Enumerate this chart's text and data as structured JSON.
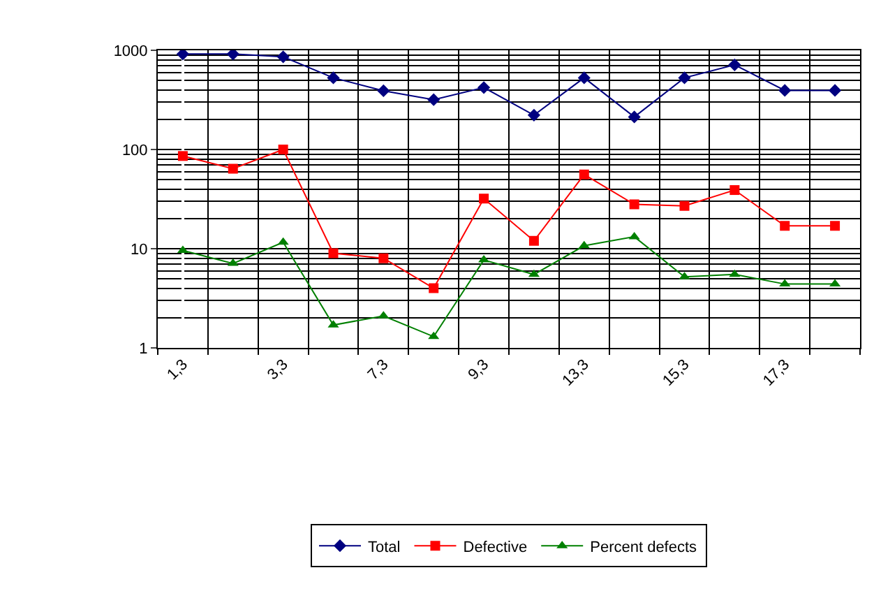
{
  "chart_data": {
    "type": "line",
    "categories": [
      "1,3",
      null,
      "3,3",
      null,
      "7,3",
      null,
      "9,3",
      null,
      "13,3",
      null,
      "15,3",
      null,
      "17,3",
      null
    ],
    "series": [
      {
        "name": "Total",
        "color": "#000080",
        "marker": "diamond",
        "values": [
          917,
          917,
          860,
          528,
          391,
          318,
          421,
          222,
          528,
          213,
          528,
          714,
          394,
          394
        ]
      },
      {
        "name": "Defective",
        "color": "#ff0000",
        "marker": "square",
        "values": [
          86,
          64,
          100,
          9,
          8,
          4,
          32,
          12,
          56,
          28,
          27,
          39,
          17,
          17
        ]
      },
      {
        "name": "Percent defects",
        "color": "#008000",
        "marker": "triangle",
        "values": [
          9.6,
          7.1,
          11.6,
          1.7,
          2.1,
          1.3,
          7.7,
          5.5,
          10.7,
          13.2,
          5.2,
          5.5,
          4.4,
          4.4
        ]
      }
    ],
    "log": true,
    "ylim": [
      1,
      1000
    ],
    "yticks": [
      1,
      10,
      100,
      1000
    ],
    "grid": true,
    "legend": "bottom"
  }
}
